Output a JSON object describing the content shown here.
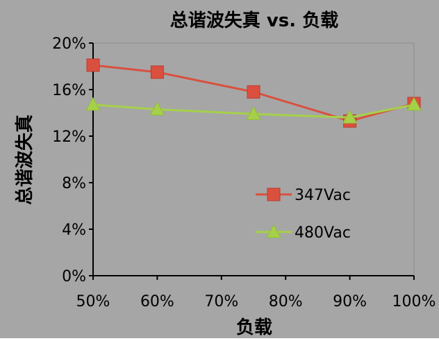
{
  "chart_data": {
    "type": "line",
    "title": "总谐波失真 vs. 负载",
    "xlabel": "负载",
    "ylabel": "总谐波失真",
    "x": [
      50,
      60,
      75,
      90,
      100
    ],
    "xlim": [
      50,
      100
    ],
    "xticks": [
      "50%",
      "60%",
      "70%",
      "80%",
      "90%",
      "100%"
    ],
    "xtick_values": [
      50,
      60,
      70,
      80,
      90,
      100
    ],
    "ylim": [
      0,
      20
    ],
    "yticks": [
      "0%",
      "4%",
      "8%",
      "12%",
      "16%",
      "20%"
    ],
    "ytick_values": [
      0,
      4,
      8,
      12,
      16,
      20
    ],
    "grid": "vertical dashed",
    "legend_position": "lower-right inside plot",
    "series": [
      {
        "name": "347Vac",
        "values": [
          18.1,
          17.5,
          15.8,
          13.3,
          14.8
        ],
        "color": "#d9503f",
        "marker": "square"
      },
      {
        "name": "480Vac",
        "values": [
          14.7,
          14.3,
          13.9,
          13.6,
          14.7
        ],
        "color": "#a6d04a",
        "marker": "triangle"
      }
    ],
    "colors": {
      "background": "#a6a6a6",
      "plot_area": "#a6a6a6"
    }
  }
}
